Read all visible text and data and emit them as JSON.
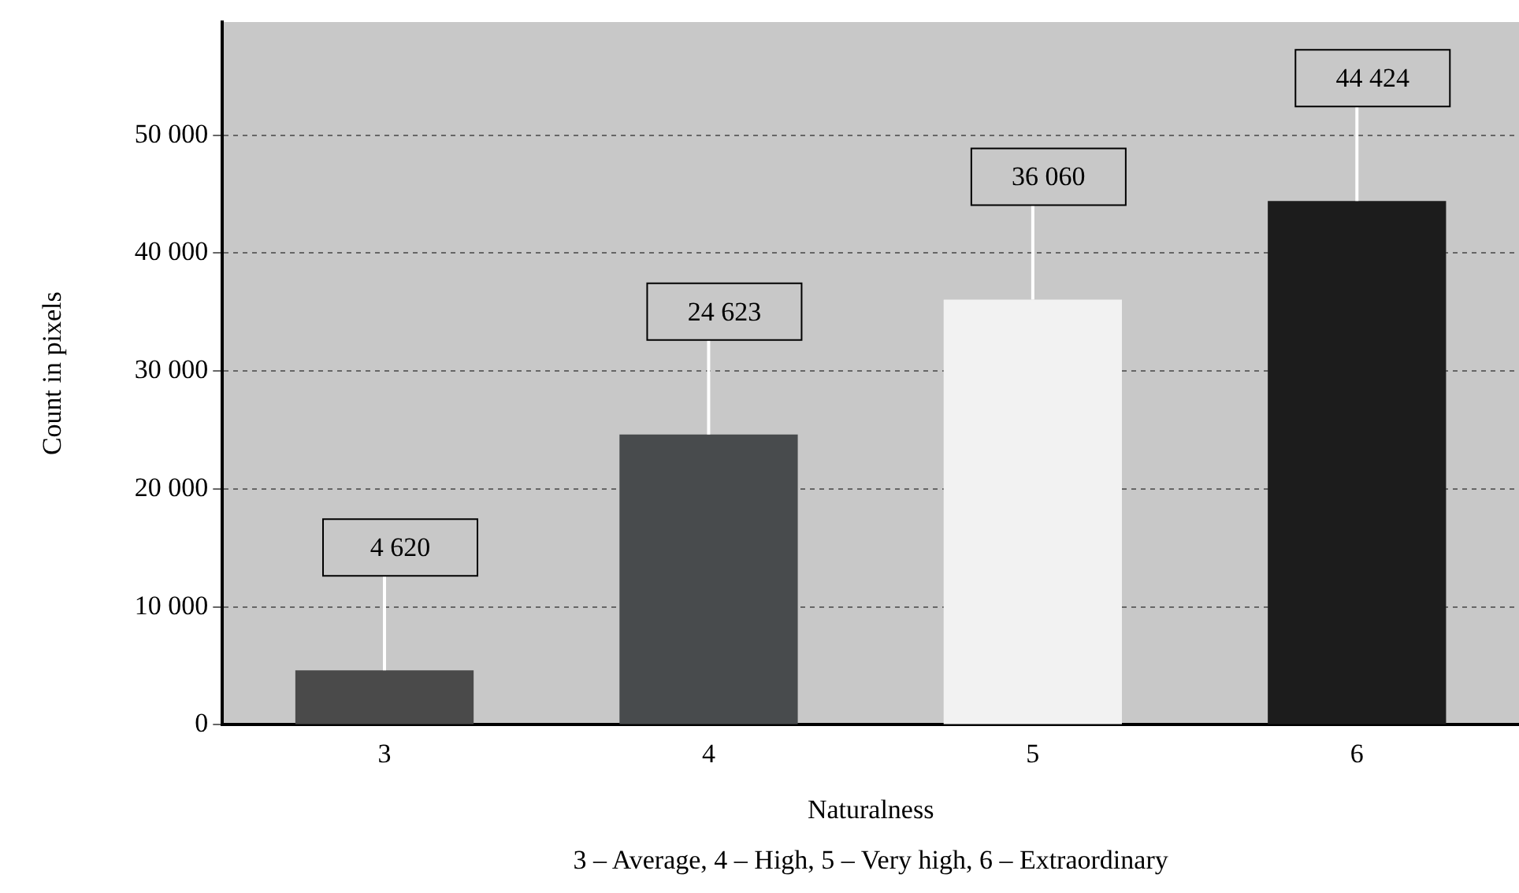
{
  "chart_data": {
    "type": "bar",
    "xlabel": "Naturalness",
    "ylabel": "Count in pixels",
    "categories": [
      "3",
      "4",
      "5",
      "6"
    ],
    "values": [
      4620,
      24623,
      36060,
      44424
    ],
    "colors": [
      "#4a4a4a",
      "#484b4d",
      "#f2f2f2",
      "#1c1c1c"
    ],
    "value_labels": [
      "4 620",
      "24 623",
      "36 060",
      "44 424"
    ],
    "ylim": [
      0,
      59600
    ],
    "yticks": [
      {
        "value": 0,
        "label": "0"
      },
      {
        "value": 10000,
        "label": "10 000"
      },
      {
        "value": 20000,
        "label": "20 000"
      },
      {
        "value": 30000,
        "label": "30 000"
      },
      {
        "value": 40000,
        "label": "40 000"
      },
      {
        "value": 50000,
        "label": "50 000"
      }
    ],
    "grid": "y",
    "legend": false,
    "annotations": [
      "3 – Average, 4 – High, 5 – Very high, 6 – Extraordinary"
    ]
  }
}
